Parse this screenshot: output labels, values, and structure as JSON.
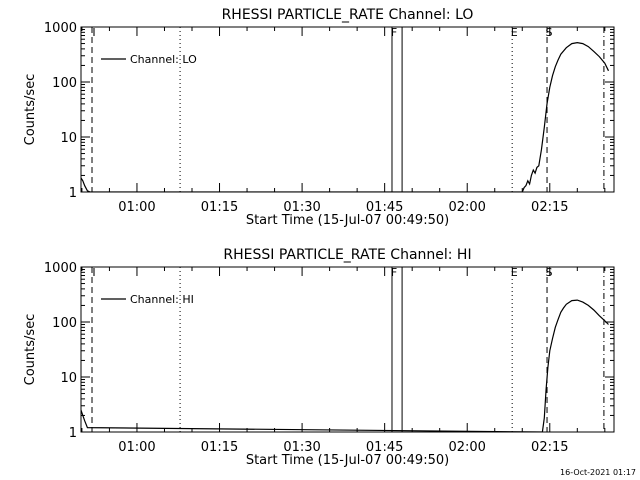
{
  "footer_timestamp": "16-Oct-2021 01:17",
  "chart_data": [
    {
      "type": "line",
      "title": "RHESSI PARTICLE_RATE Channel: LO",
      "xlabel": "Start Time (15-Jul-07 00:49:50)",
      "ylabel": "Counts/sec",
      "yscale": "log",
      "ylim": [
        1,
        1000
      ],
      "xlim": [
        "00:49:50",
        "02:26:40"
      ],
      "grid": false,
      "legend_position": "top-left",
      "x_ticks": [
        "01:00",
        "01:15",
        "01:30",
        "01:45",
        "02:00",
        "02:15"
      ],
      "y_ticks": [
        "1",
        "10",
        "100",
        "1000"
      ],
      "series": [
        {
          "name": "Channel: LO",
          "x": [
            "00:49:50",
            "00:50:10",
            "00:50:30",
            "00:51:00",
            "00:51:30",
            "02:10:00",
            "02:10:20",
            "02:10:40",
            "02:11:00",
            "02:11:20",
            "02:11:40",
            "02:12:00",
            "02:12:20",
            "02:12:40",
            "02:13:00",
            "02:13:30",
            "02:14:00",
            "02:14:30",
            "02:15:00",
            "02:15:30",
            "02:16:00",
            "02:16:30",
            "02:17:00",
            "02:18:00",
            "02:19:00",
            "02:20:00",
            "02:21:00",
            "02:22:00",
            "02:23:00",
            "02:24:00",
            "02:25:00",
            "02:25:40"
          ],
          "y": [
            1.8,
            1.6,
            1.3,
            1.05,
            1.0,
            1.0,
            1.2,
            1.3,
            1.6,
            1.4,
            2.0,
            2.5,
            2.2,
            2.8,
            3.0,
            6,
            15,
            40,
            80,
            130,
            190,
            250,
            320,
            420,
            500,
            520,
            500,
            440,
            360,
            290,
            220,
            160
          ]
        }
      ],
      "markers": [
        {
          "label": "I",
          "time": "00:51:50",
          "style": "dashed"
        },
        {
          "label": "",
          "time": "01:07:50",
          "style": "dotted"
        },
        {
          "label": "F",
          "time": "01:46:20",
          "style": "solid"
        },
        {
          "label": "",
          "time": "01:48:10",
          "style": "solid"
        },
        {
          "label": "E",
          "time": "02:08:10",
          "style": "dotted"
        },
        {
          "label": "S",
          "time": "02:14:30",
          "style": "dashed"
        },
        {
          "label": "",
          "time": "02:24:50",
          "style": "dashdot"
        }
      ]
    },
    {
      "type": "line",
      "title": "RHESSI PARTICLE_RATE Channel: HI",
      "xlabel": "Start Time (15-Jul-07 00:49:50)",
      "ylabel": "Counts/sec",
      "yscale": "log",
      "ylim": [
        1,
        1000
      ],
      "xlim": [
        "00:49:50",
        "02:26:40"
      ],
      "grid": false,
      "legend_position": "top-left",
      "x_ticks": [
        "01:00",
        "01:15",
        "01:30",
        "01:45",
        "02:00",
        "02:15"
      ],
      "y_ticks": [
        "1",
        "10",
        "100",
        "1000"
      ],
      "series": [
        {
          "name": "Channel: HI",
          "x": [
            "00:49:50",
            "00:50:10",
            "00:50:30",
            "00:51:00",
            "02:13:40",
            "02:14:00",
            "02:14:20",
            "02:14:40",
            "02:15:00",
            "02:15:30",
            "02:16:00",
            "02:16:30",
            "02:17:00",
            "02:17:30",
            "02:18:00",
            "02:19:00",
            "02:20:00",
            "02:21:00",
            "02:22:00",
            "02:23:00",
            "02:24:00",
            "02:25:00",
            "02:25:40"
          ],
          "y": [
            2.5,
            2.0,
            1.6,
            1.2,
            1.0,
            1.8,
            6,
            15,
            30,
            50,
            80,
            110,
            150,
            180,
            210,
            245,
            250,
            230,
            200,
            165,
            130,
            105,
            90
          ]
        }
      ],
      "markers": [
        {
          "label": "I",
          "time": "00:51:50",
          "style": "dashed"
        },
        {
          "label": "",
          "time": "01:07:50",
          "style": "dotted"
        },
        {
          "label": "F",
          "time": "01:46:20",
          "style": "solid"
        },
        {
          "label": "",
          "time": "01:48:10",
          "style": "solid"
        },
        {
          "label": "E",
          "time": "02:08:10",
          "style": "dotted"
        },
        {
          "label": "S",
          "time": "02:14:30",
          "style": "dashed"
        },
        {
          "label": "",
          "time": "02:24:50",
          "style": "dashdot"
        }
      ]
    }
  ]
}
